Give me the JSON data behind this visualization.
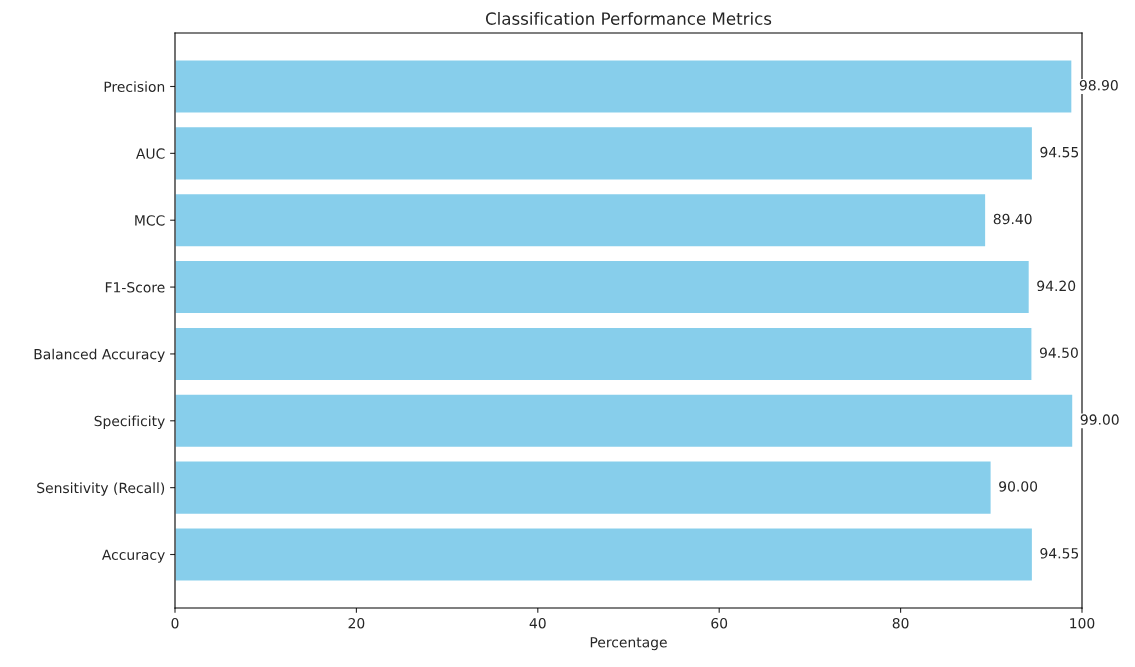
{
  "chart_data": {
    "type": "bar",
    "orientation": "horizontal",
    "title": "Classification Performance Metrics",
    "xlabel": "Percentage",
    "categories": [
      "Precision",
      "AUC",
      "MCC",
      "F1-Score",
      "Balanced Accuracy",
      "Specificity",
      "Sensitivity (Recall)",
      "Accuracy"
    ],
    "values": [
      98.9,
      94.55,
      89.4,
      94.2,
      94.5,
      99.0,
      90.0,
      94.55
    ],
    "value_labels": [
      "98.90",
      "94.55",
      "89.40",
      "94.20",
      "94.50",
      "99.00",
      "90.00",
      "94.55"
    ],
    "color": "#87ceeb",
    "xlim": [
      0,
      100
    ],
    "xticks": [
      0,
      20,
      40,
      60,
      80,
      100
    ],
    "grid": false
  }
}
